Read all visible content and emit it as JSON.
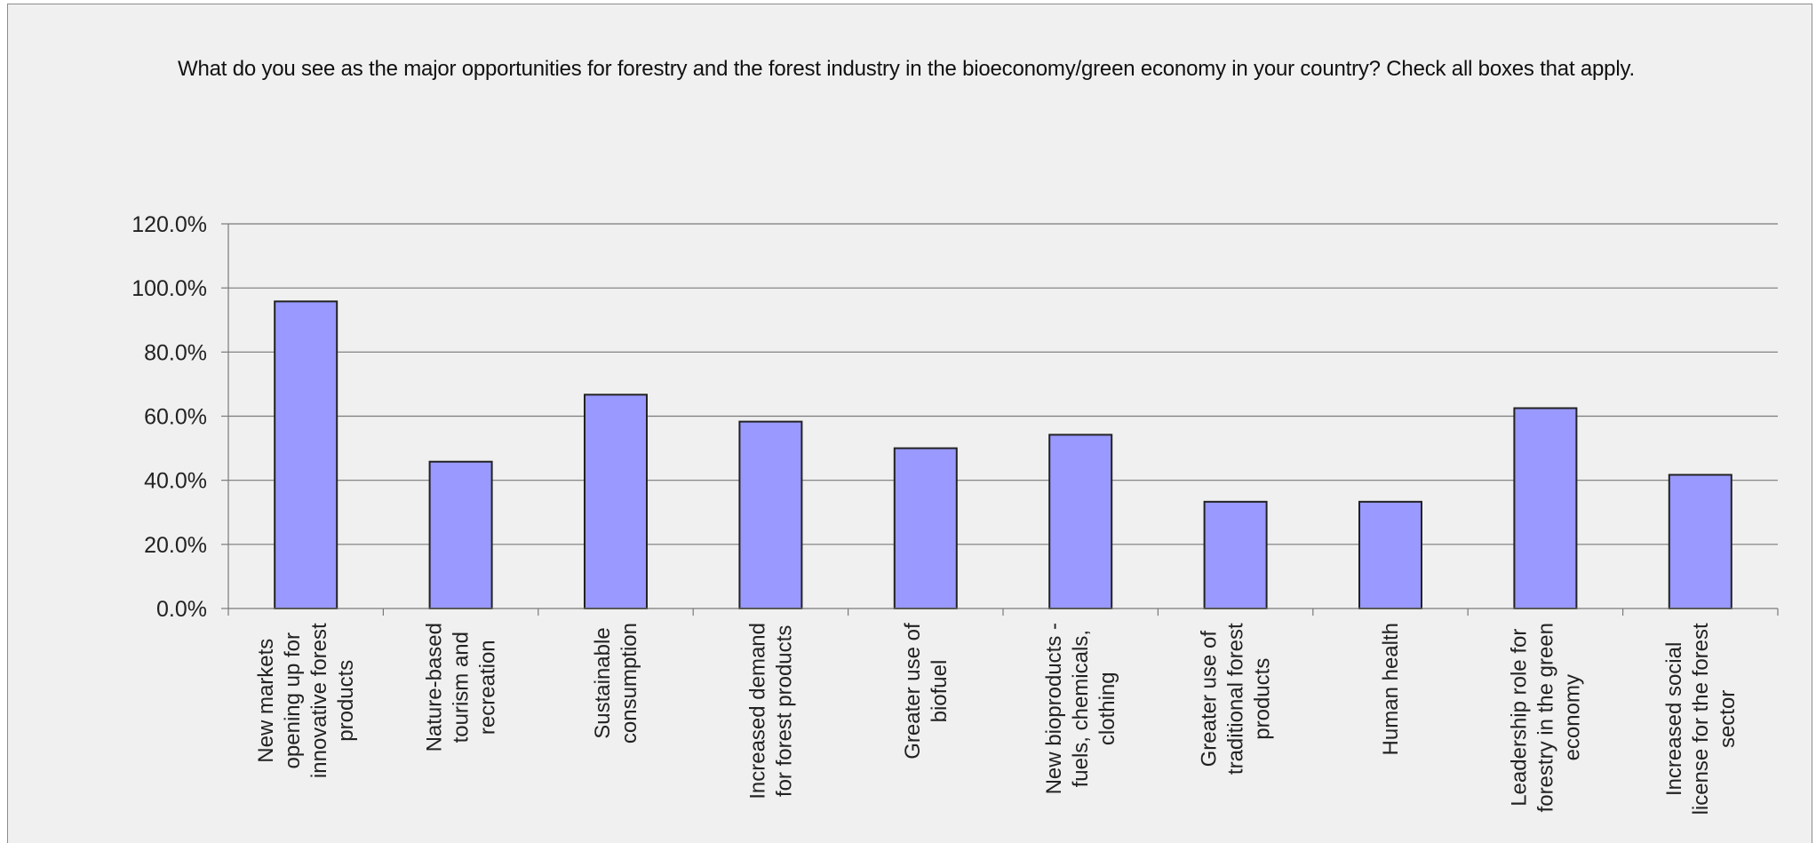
{
  "chart_data": {
    "type": "bar",
    "title": "What do you see as the major opportunities for forestry and the forest industry in the bioeconomy/green economy in your country? Check all boxes that apply.",
    "xlabel": "",
    "ylabel": "",
    "ylim": [
      0,
      120
    ],
    "yticks": [
      "0.0%",
      "20.0%",
      "40.0%",
      "60.0%",
      "80.0%",
      "100.0%",
      "120.0%"
    ],
    "grid": true,
    "legend": "none",
    "bar_color": "#9999ff",
    "bar_edge_color": "#222222",
    "categories": [
      "New markets opening up for innovative forest products",
      "Nature-based tourism and recreation",
      "Sustainable consumption",
      "Increased demand for forest products",
      "Greater use of biofuel",
      "New bioproducts - fuels, chemicals, clothing",
      "Greater use of traditional forest products",
      "Human health",
      "Leadership role for forestry in the green economy",
      "Increased social license for the forest sector"
    ],
    "category_label_lines": [
      [
        "New markets",
        "opening up for",
        "innovative forest",
        "products"
      ],
      [
        "Nature-based",
        "tourism and",
        "recreation"
      ],
      [
        "Sustainable",
        "consumption"
      ],
      [
        "Increased demand",
        "for forest products"
      ],
      [
        "Greater use of",
        "biofuel"
      ],
      [
        "New bioproducts -",
        "fuels, chemicals,",
        "clothing"
      ],
      [
        "Greater use of",
        "traditional forest",
        "products"
      ],
      [
        "Human health"
      ],
      [
        "Leadership role for",
        "forestry in the green",
        "economy"
      ],
      [
        "Increased social",
        "license for the forest",
        "sector"
      ]
    ],
    "values": [
      95.8,
      45.8,
      66.7,
      58.3,
      50.0,
      54.2,
      33.3,
      33.3,
      62.5,
      41.7
    ]
  }
}
